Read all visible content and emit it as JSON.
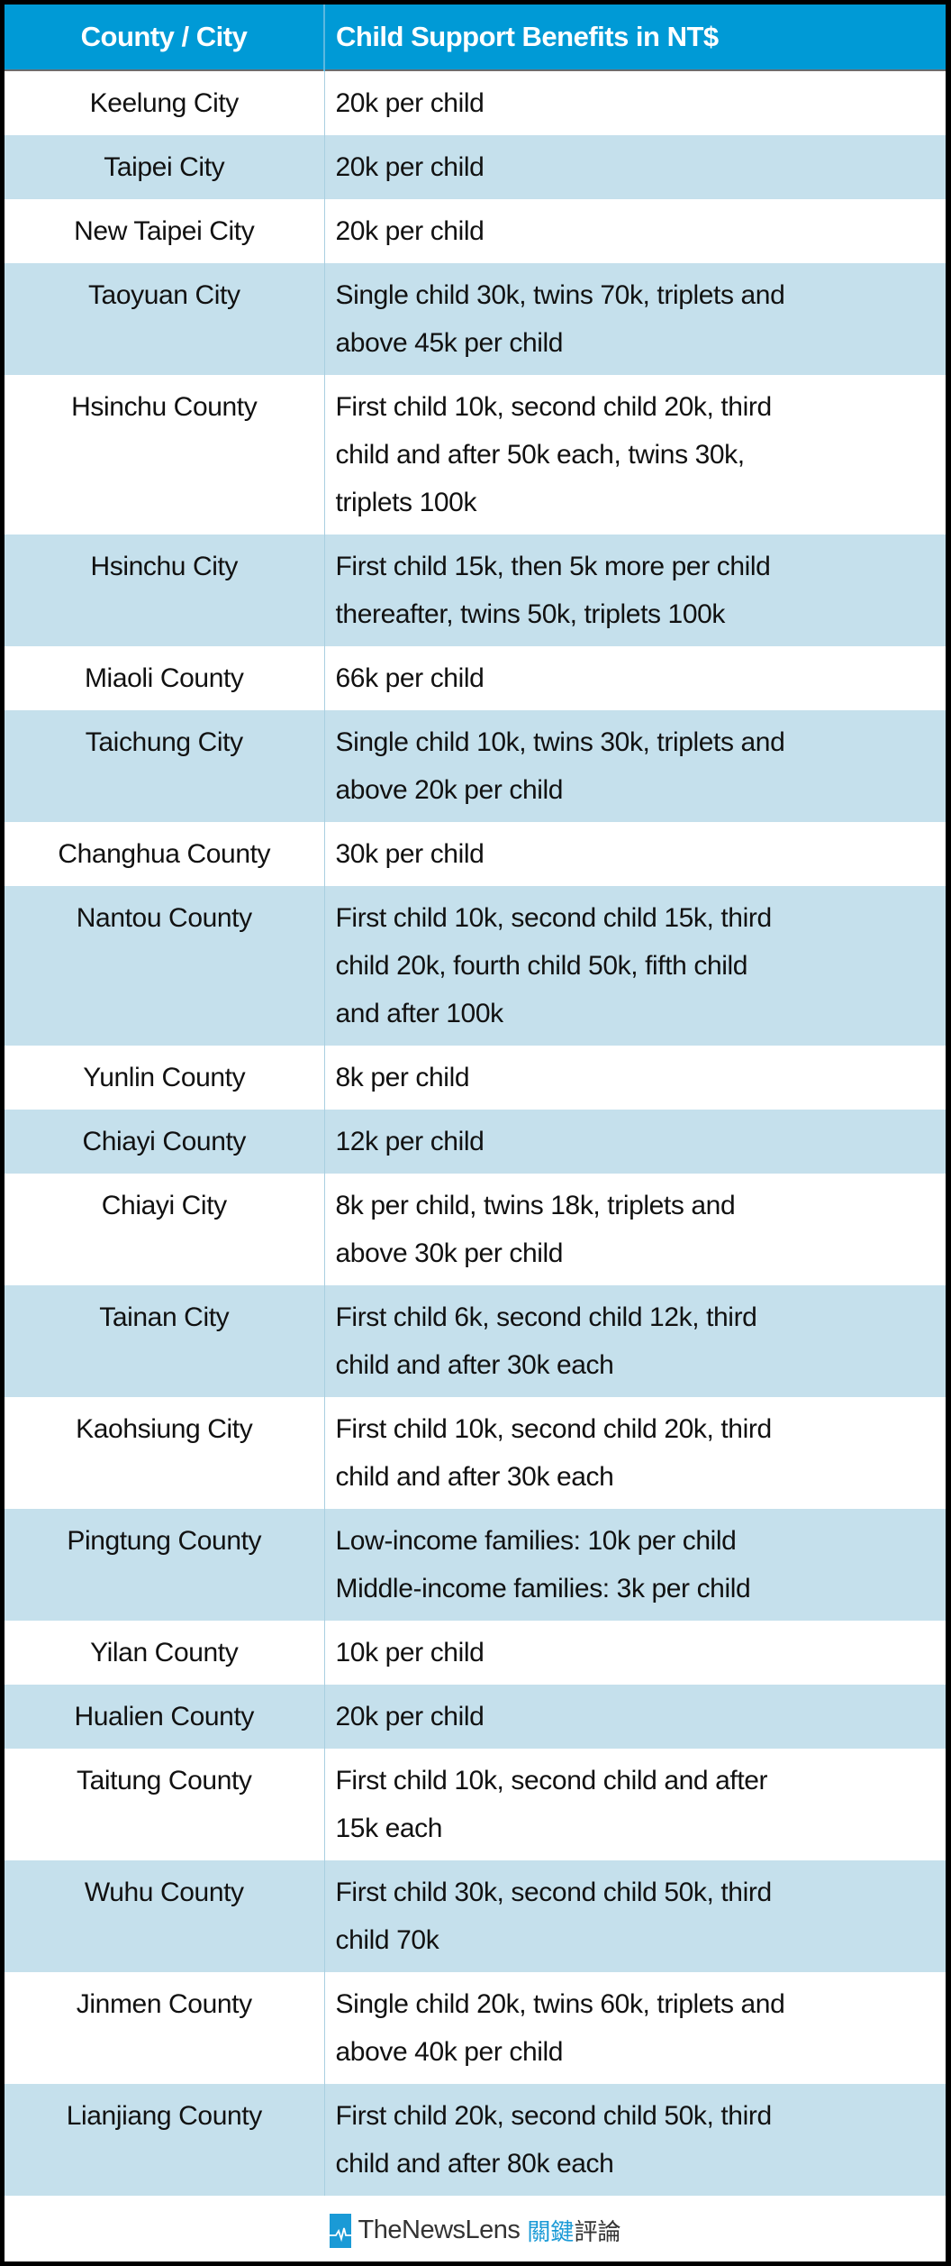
{
  "table": {
    "headers": [
      "County / City",
      "Child Support Benefits in NT$"
    ],
    "rows": [
      {
        "county": "Keelung City",
        "lines": [
          "20k per child"
        ]
      },
      {
        "county": "Taipei City",
        "lines": [
          "20k per child"
        ]
      },
      {
        "county": "New Taipei City",
        "lines": [
          "20k per child"
        ]
      },
      {
        "county": "Taoyuan City",
        "lines": [
          "Single child 30k, twins 70k, triplets and",
          "above 45k per child"
        ]
      },
      {
        "county": "Hsinchu County",
        "lines": [
          "First child 10k, second child 20k, third",
          "child and after 50k each, twins 30k,",
          "triplets 100k"
        ]
      },
      {
        "county": "Hsinchu City",
        "lines": [
          "First child 15k, then 5k more per child",
          "thereafter, twins 50k, triplets 100k"
        ]
      },
      {
        "county": "Miaoli County",
        "lines": [
          "66k per child"
        ]
      },
      {
        "county": "Taichung City",
        "lines": [
          "Single child 10k, twins 30k, triplets and",
          "above 20k per child"
        ]
      },
      {
        "county": "Changhua County",
        "lines": [
          "30k per child"
        ]
      },
      {
        "county": "Nantou County",
        "lines": [
          "First child 10k, second child 15k, third",
          "child 20k, fourth child 50k, fifth child",
          "and after 100k"
        ]
      },
      {
        "county": "Yunlin County",
        "lines": [
          "8k per child"
        ]
      },
      {
        "county": "Chiayi County",
        "lines": [
          "12k per child"
        ]
      },
      {
        "county": "Chiayi City",
        "lines": [
          "8k per child, twins 18k, triplets and",
          "above 30k per child"
        ]
      },
      {
        "county": "Tainan City",
        "lines": [
          "First child 6k, second child 12k, third",
          "child and after 30k each"
        ]
      },
      {
        "county": "Kaohsiung City",
        "lines": [
          "First child 10k, second child 20k, third",
          "child and after 30k each"
        ]
      },
      {
        "county": "Pingtung County",
        "lines": [
          "Low-income families: 10k per child",
          "Middle-income families: 3k per child"
        ]
      },
      {
        "county": "Yilan County",
        "lines": [
          "10k per child"
        ]
      },
      {
        "county": "Hualien County",
        "lines": [
          "20k per child"
        ]
      },
      {
        "county": "Taitung County",
        "lines": [
          "First child 10k, second child and after",
          "15k each"
        ]
      },
      {
        "county": "Wuhu County",
        "lines": [
          "First child 30k, second child 50k, third",
          "child 70k"
        ]
      },
      {
        "county": "Jinmen County",
        "lines": [
          "Single child 20k, twins 60k, triplets and",
          "above 40k per child"
        ]
      },
      {
        "county": "Lianjiang County",
        "lines": [
          "First child 20k, second child 50k, third",
          "child and after 80k each"
        ]
      }
    ]
  },
  "footer": {
    "brand": "TheNewsLens",
    "brand_zh_a": "關鍵",
    "brand_zh_b": "評論",
    "logo_icon": "heartbeat-logo-icon"
  },
  "colors": {
    "header_bg": "#009ad6",
    "stripe": "#c5e0ec",
    "brand_blue": "#1a9ad6"
  }
}
